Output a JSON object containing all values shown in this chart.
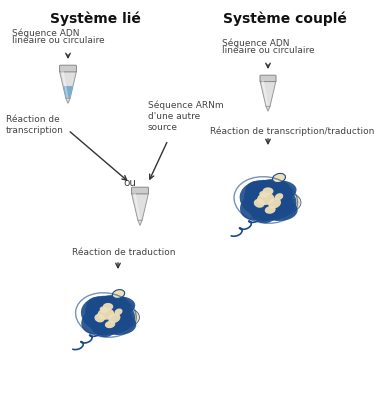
{
  "bg_color": "#ffffff",
  "title_left": "Système lié",
  "title_right": "Système couplé",
  "title_fontsize": 10,
  "title_fontweight": "bold",
  "label_fontsize": 6.5,
  "label_color": "#444444",
  "arrow_color": "#333333",
  "tube_blue_fill": "#7aadcf",
  "tube_liquid_top": "#aaccdd",
  "protein_blue": "#1a4a8a",
  "protein_cream": "#f0e0b8",
  "labels": {
    "seq_adn_left_1": "Séquence ADN",
    "seq_adn_left_2": "linéaire ou circulaire",
    "seq_arnm": "Séquence ARNm\nd'une autre\nsource",
    "reaction_transcription": "Réaction de\ntranscription",
    "ou": "ou",
    "reaction_traduction": "Réaction de traduction",
    "seq_adn_right_1": "Séquence ADN",
    "seq_adn_right_2": "linéaire ou circulaire",
    "reaction_transcrip_traduc": "Réaction de transcription/traduction"
  }
}
